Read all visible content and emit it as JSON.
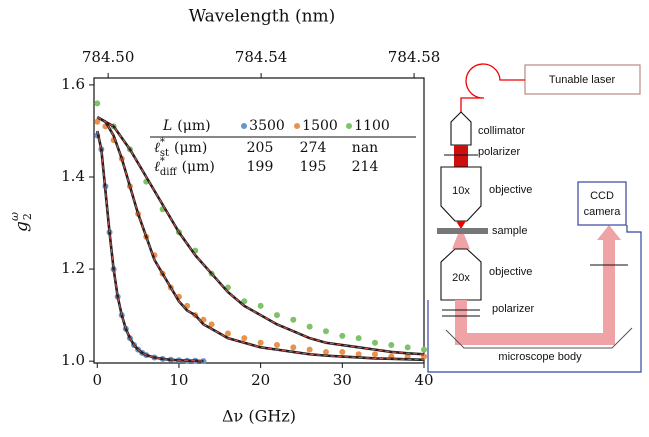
{
  "chart_data": {
    "type": "scatter",
    "title": "Wavelength (nm)",
    "x_label": "Δν (GHz)",
    "y_label": {
      "symbol": "g",
      "sub": "2",
      "sup": "ω"
    },
    "xlim": [
      -0.4,
      40
    ],
    "xticks": [
      0,
      10,
      20,
      30,
      40
    ],
    "x2lim": [
      784.4963,
      784.5826
    ],
    "x2ticks": [
      {
        "value": 784.5,
        "label": "784.50"
      },
      784.54,
      784.58
    ],
    "ylim": [
      0.996,
      1.615
    ],
    "yticks": [
      {
        "value": 1.0,
        "label": "1.0"
      },
      {
        "value": 1.2,
        "label": "1.2"
      },
      {
        "value": 1.4,
        "label": "1.4"
      },
      {
        "value": 1.6,
        "label": "1.6"
      }
    ],
    "fit_color": "#222222",
    "fit_dash_color": "#d9534f",
    "legend_header": {
      "symbol": "L",
      "unit": "(μm)"
    },
    "series": [
      {
        "name": "3500",
        "color": "#6a95cc",
        "x": [
          0,
          0.5,
          1,
          1.5,
          2,
          2.5,
          3,
          3.5,
          4,
          4.5,
          5,
          5.5,
          6,
          7,
          8,
          9,
          10,
          11,
          12,
          13
        ],
        "values": [
          1.49,
          1.46,
          1.38,
          1.28,
          1.2,
          1.14,
          1.1,
          1.07,
          1.05,
          1.035,
          1.025,
          1.018,
          1.013,
          1.008,
          1.005,
          1.003,
          1.002,
          1.001,
          1.001,
          1.0
        ],
        "fit": [
          1.5,
          1.46,
          1.37,
          1.28,
          1.2,
          1.14,
          1.1,
          1.07,
          1.05,
          1.035,
          1.025,
          1.018,
          1.013,
          1.008,
          1.005,
          1.003,
          1.002,
          1.001,
          1.001,
          1.0
        ]
      },
      {
        "name": "1500",
        "color": "#e8934c",
        "x": [
          0,
          1,
          2,
          3,
          4,
          5,
          6,
          7,
          8,
          9,
          10,
          11,
          12,
          13,
          14,
          16,
          18,
          20,
          22,
          24,
          26,
          28,
          30,
          32,
          34,
          36,
          38,
          40
        ],
        "values": [
          1.52,
          1.51,
          1.48,
          1.44,
          1.38,
          1.32,
          1.27,
          1.23,
          1.19,
          1.16,
          1.14,
          1.12,
          1.1,
          1.09,
          1.08,
          1.06,
          1.05,
          1.04,
          1.035,
          1.03,
          1.025,
          1.02,
          1.02,
          1.015,
          1.015,
          1.01,
          1.01,
          1.01
        ],
        "fit": [
          1.53,
          1.52,
          1.49,
          1.44,
          1.38,
          1.32,
          1.27,
          1.22,
          1.19,
          1.16,
          1.13,
          1.11,
          1.1,
          1.08,
          1.07,
          1.05,
          1.04,
          1.03,
          1.025,
          1.02,
          1.015,
          1.012,
          1.01,
          1.008,
          1.006,
          1.005,
          1.004,
          1.003
        ]
      },
      {
        "name": "1100",
        "color": "#7ec26a",
        "x": [
          0,
          2,
          4,
          6,
          8,
          10,
          12,
          14,
          16,
          18,
          20,
          22,
          24,
          26,
          28,
          30,
          32,
          34,
          36,
          38,
          40
        ],
        "values": [
          1.56,
          1.51,
          1.46,
          1.39,
          1.33,
          1.28,
          1.24,
          1.19,
          1.16,
          1.13,
          1.12,
          1.1,
          1.09,
          1.075,
          1.065,
          1.055,
          1.05,
          1.04,
          1.035,
          1.03,
          1.025
        ],
        "fit": [
          1.53,
          1.51,
          1.46,
          1.4,
          1.34,
          1.28,
          1.23,
          1.19,
          1.15,
          1.12,
          1.1,
          1.08,
          1.065,
          1.05,
          1.04,
          1.035,
          1.03,
          1.025,
          1.02,
          1.017,
          1.015
        ]
      }
    ],
    "table": {
      "rows": [
        {
          "label": {
            "symbol": "ℓ",
            "sup": "*",
            "sub": "st",
            "unit": "(μm)"
          },
          "values": [
            205,
            274,
            "nan"
          ]
        },
        {
          "label": {
            "symbol": "ℓ",
            "sup": "*",
            "sub": "diff",
            "unit": "(μm)"
          },
          "values": [
            199,
            195,
            214
          ]
        }
      ]
    }
  },
  "diagram": {
    "labels": {
      "laser": "Tunable laser",
      "collimator": "collimator",
      "polarizer_top": "polarizer",
      "objective_top_mag": "10x",
      "objective_top": "objective",
      "sample": "sample",
      "objective_bottom_mag": "20x",
      "objective_bottom": "objective",
      "polarizer_bottom": "polarizer",
      "microscope": "microscope body",
      "camera_line1": "CCD",
      "camera_line2": "camera"
    }
  }
}
